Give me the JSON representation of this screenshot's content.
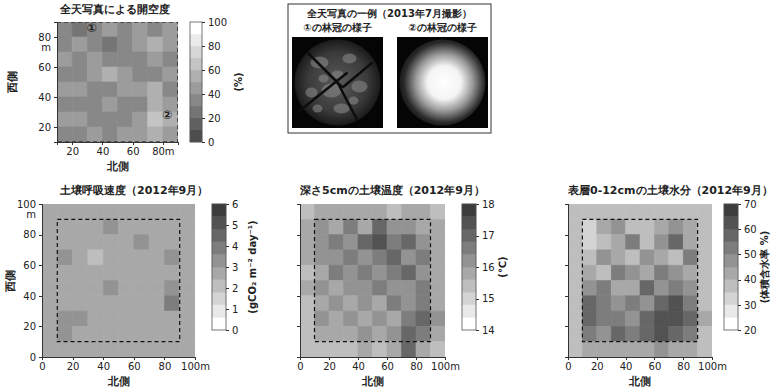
{
  "chart_data": [
    {
      "type": "heatmap",
      "title": "全天写真による開空度",
      "x_label": "北側",
      "y_label": "西側",
      "x": [
        15,
        25,
        35,
        45,
        55,
        65,
        75,
        85
      ],
      "y": [
        85,
        75,
        65,
        55,
        45,
        35,
        25,
        15
      ],
      "cells": [
        [
          30,
          25,
          35,
          40,
          30,
          45,
          35,
          40
        ],
        [
          35,
          40,
          30,
          25,
          35,
          40,
          50,
          45
        ],
        [
          40,
          30,
          45,
          35,
          30,
          35,
          40,
          35
        ],
        [
          30,
          35,
          40,
          50,
          45,
          30,
          35,
          40
        ],
        [
          45,
          40,
          30,
          35,
          40,
          45,
          50,
          35
        ],
        [
          35,
          30,
          35,
          40,
          30,
          35,
          55,
          45
        ],
        [
          40,
          45,
          35,
          30,
          35,
          45,
          65,
          50
        ],
        [
          30,
          35,
          40,
          35,
          45,
          40,
          50,
          40
        ]
      ],
      "xlim": [
        10,
        90
      ],
      "ylim": [
        10,
        90
      ],
      "xticks": [
        20,
        40,
        60,
        {
          "value": 80,
          "label": "80m"
        }
      ],
      "yticks": [
        20,
        40,
        60,
        {
          "value": 80,
          "label": "80 m"
        }
      ],
      "colorbar": {
        "range": [
          0,
          100
        ],
        "ticks": [
          0,
          20,
          40,
          60,
          80,
          100
        ],
        "label": "(%)"
      },
      "colors": [
        "#4d4d4d",
        "#ffffff"
      ],
      "plot_boundary": [
        10,
        90
      ],
      "annotations": [
        {
          "text": "①",
          "x": 33,
          "y": 86
        },
        {
          "text": "②",
          "x": 83,
          "y": 28
        }
      ]
    },
    {
      "type": "heatmap",
      "title": "土壌呼吸速度（2012年9月）",
      "x_label": "北側",
      "y_label": "西側",
      "x": [
        5,
        15,
        25,
        35,
        45,
        55,
        65,
        75,
        85,
        95
      ],
      "y": [
        95,
        85,
        75,
        65,
        55,
        45,
        35,
        25,
        15,
        5
      ],
      "cells": [
        [
          2.5,
          2.5,
          2.6,
          2.4,
          2.5,
          2.7,
          2.5,
          2.6,
          2.5,
          2.5
        ],
        [
          2.6,
          2.8,
          2.4,
          2.6,
          3.0,
          2.5,
          2.4,
          2.8,
          2.6,
          2.5
        ],
        [
          2.5,
          2.4,
          2.9,
          2.5,
          2.4,
          2.6,
          3.1,
          2.5,
          2.7,
          2.5
        ],
        [
          2.6,
          3.0,
          2.5,
          2.3,
          2.7,
          2.5,
          2.6,
          2.4,
          3.0,
          2.6
        ],
        [
          2.5,
          2.6,
          2.4,
          2.8,
          2.5,
          2.9,
          2.4,
          2.6,
          2.5,
          2.6
        ],
        [
          2.6,
          2.5,
          2.7,
          2.5,
          3.0,
          2.6,
          2.8,
          2.5,
          3.4,
          2.7
        ],
        [
          2.5,
          2.9,
          2.6,
          2.4,
          2.6,
          2.5,
          2.7,
          2.9,
          3.6,
          2.8
        ],
        [
          2.6,
          3.2,
          3.0,
          2.6,
          2.5,
          2.8,
          2.6,
          2.5,
          2.7,
          2.5
        ],
        [
          2.5,
          3.4,
          2.8,
          2.5,
          2.7,
          2.6,
          2.5,
          2.8,
          2.6,
          2.5
        ],
        [
          2.5,
          2.6,
          2.5,
          2.6,
          2.5,
          2.5,
          2.6,
          2.5,
          2.5,
          2.5
        ]
      ],
      "xlim": [
        0,
        100
      ],
      "ylim": [
        0,
        100
      ],
      "xticks": [
        0,
        20,
        40,
        60,
        80,
        {
          "value": 100,
          "label": "100m"
        }
      ],
      "yticks": [
        0,
        20,
        40,
        60,
        80,
        {
          "value": 100,
          "label": "100 m"
        }
      ],
      "colorbar": {
        "range": [
          0,
          6
        ],
        "ticks": [
          0,
          1,
          2,
          3,
          4,
          5,
          6
        ],
        "label": "(gCO₂ m⁻² day⁻¹)"
      },
      "colors": [
        "#ffffff",
        "#3c3c3c"
      ],
      "plot_boundary": [
        10,
        90
      ]
    },
    {
      "type": "heatmap",
      "title": "深さ5cmの土壌温度（2012年9月）",
      "x_label": "北側",
      "x": [
        5,
        15,
        25,
        35,
        45,
        55,
        65,
        75,
        85,
        95
      ],
      "y": [
        95,
        85,
        75,
        65,
        55,
        45,
        35,
        25,
        15,
        5
      ],
      "cells": [
        [
          15.5,
          15.6,
          15.8,
          15.7,
          15.9,
          15.6,
          15.5,
          15.7,
          15.6,
          15.5
        ],
        [
          15.6,
          16.2,
          15.9,
          16.5,
          15.8,
          16.8,
          16.3,
          16.0,
          15.8,
          15.6
        ],
        [
          15.7,
          16.0,
          16.4,
          16.1,
          16.9,
          17.2,
          16.4,
          16.8,
          16.2,
          15.7
        ],
        [
          15.6,
          16.3,
          16.0,
          16.5,
          16.2,
          16.6,
          17.0,
          16.3,
          16.6,
          15.8
        ],
        [
          15.5,
          15.9,
          16.4,
          16.0,
          16.7,
          16.1,
          16.5,
          16.9,
          16.2,
          15.7
        ],
        [
          15.6,
          16.1,
          15.8,
          16.3,
          16.0,
          16.4,
          16.0,
          16.3,
          16.7,
          15.8
        ],
        [
          15.5,
          15.8,
          16.2,
          15.9,
          16.3,
          15.9,
          16.4,
          16.1,
          16.5,
          15.9
        ],
        [
          15.4,
          16.0,
          15.7,
          16.1,
          15.8,
          16.2,
          15.9,
          16.6,
          16.9,
          16.0
        ],
        [
          15.3,
          15.7,
          15.9,
          15.6,
          16.0,
          15.7,
          16.3,
          17.0,
          16.4,
          15.7
        ],
        [
          15.2,
          15.4,
          15.5,
          15.5,
          15.6,
          15.5,
          15.8,
          16.8,
          15.9,
          15.5
        ]
      ],
      "xlim": [
        0,
        100
      ],
      "ylim": [
        0,
        100
      ],
      "xticks": [
        0,
        20,
        40,
        60,
        80,
        {
          "value": 100,
          "label": "100m"
        }
      ],
      "yticks": [
        0,
        20,
        40,
        60,
        80,
        100
      ],
      "tick_labels": "x",
      "colorbar": {
        "range": [
          14,
          18
        ],
        "ticks": [
          14,
          15,
          16,
          17,
          18
        ],
        "label": "(℃)"
      },
      "colors": [
        "#ffffff",
        "#3c3c3c"
      ],
      "plot_boundary": [
        10,
        90
      ]
    },
    {
      "type": "heatmap",
      "title": "表層0-12cmの土壌水分（2012年9月）",
      "x_label": "北側",
      "x": [
        5,
        15,
        25,
        35,
        45,
        55,
        65,
        75,
        85,
        95
      ],
      "y": [
        95,
        85,
        75,
        65,
        55,
        45,
        35,
        25,
        15,
        5
      ],
      "cells": [
        [
          35,
          36,
          38,
          37,
          36,
          38,
          37,
          36,
          35,
          35
        ],
        [
          36,
          32,
          40,
          45,
          38,
          35,
          42,
          48,
          40,
          36
        ],
        [
          38,
          30,
          35,
          42,
          50,
          38,
          45,
          55,
          44,
          37
        ],
        [
          37,
          35,
          45,
          40,
          36,
          48,
          42,
          38,
          50,
          38
        ],
        [
          36,
          42,
          38,
          50,
          45,
          40,
          52,
          46,
          42,
          37
        ],
        [
          38,
          48,
          52,
          44,
          40,
          55,
          48,
          50,
          45,
          38
        ],
        [
          37,
          55,
          50,
          46,
          52,
          48,
          56,
          60,
          52,
          39
        ],
        [
          38,
          58,
          54,
          50,
          48,
          55,
          60,
          62,
          56,
          40
        ],
        [
          36,
          52,
          48,
          55,
          50,
          58,
          62,
          58,
          50,
          38
        ],
        [
          35,
          40,
          42,
          40,
          42,
          44,
          45,
          43,
          40,
          36
        ]
      ],
      "xlim": [
        0,
        100
      ],
      "ylim": [
        0,
        100
      ],
      "xticks": [
        0,
        20,
        40,
        60,
        80,
        {
          "value": 100,
          "label": "100m"
        }
      ],
      "yticks": [
        0,
        20,
        40,
        60,
        80,
        100
      ],
      "tick_labels": "x",
      "colorbar": {
        "range": [
          20,
          70
        ],
        "ticks": [
          20,
          30,
          40,
          50,
          60,
          70
        ],
        "label": "(体積含水率 %)"
      },
      "colors": [
        "#ffffff",
        "#3c3c3c"
      ],
      "plot_boundary": [
        10,
        90
      ]
    }
  ],
  "photo_box": {
    "title": "全天写真の一例（2013年7月撮影）",
    "photos": [
      {
        "caption": "①の林冠の様子"
      },
      {
        "caption": "②の林冠の様子"
      }
    ]
  }
}
